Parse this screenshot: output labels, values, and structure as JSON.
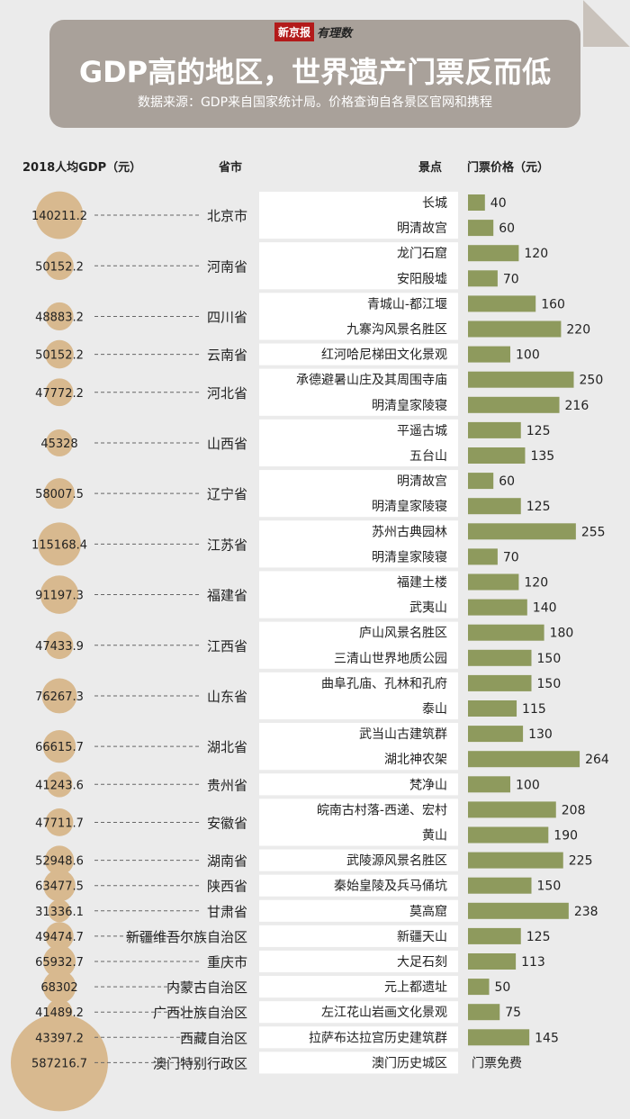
{
  "header": {
    "logo_red": "新京报",
    "logo_sub": "有理数",
    "title": "GDP高的地区，世界遗产门票反而低",
    "source": "数据来源：GDP来自国家统计局。价格查询自各景区官网和携程"
  },
  "columns": {
    "gdp": "2018人均GDP（元）",
    "province": "省市",
    "site": "景点",
    "price": "门票价格（元）"
  },
  "colors": {
    "circle": "#d8b98f",
    "bar": "#8e9a5d",
    "site_box": "#ffffff",
    "banner": "#a9a19a"
  },
  "chart_data": {
    "type": "table",
    "provinces": [
      {
        "name": "北京市",
        "gdp": "140211.2",
        "sites": [
          {
            "name": "长城",
            "price": 40
          },
          {
            "name": "明清故宫",
            "price": 60
          }
        ]
      },
      {
        "name": "河南省",
        "gdp": "50152.2",
        "sites": [
          {
            "name": "龙门石窟",
            "price": 120
          },
          {
            "name": "安阳殷墟",
            "price": 70
          }
        ]
      },
      {
        "name": "四川省",
        "gdp": "48883.2",
        "sites": [
          {
            "name": "青城山-都江堰",
            "price": 160
          },
          {
            "name": "九寨沟风景名胜区",
            "price": 220
          }
        ]
      },
      {
        "name": "云南省",
        "gdp": "50152.2",
        "sites": [
          {
            "name": "红河哈尼梯田文化景观",
            "price": 100
          }
        ]
      },
      {
        "name": "河北省",
        "gdp": "47772.2",
        "sites": [
          {
            "name": "承德避暑山庄及其周围寺庙",
            "price": 250
          },
          {
            "name": "明清皇家陵寝",
            "price": 216
          }
        ]
      },
      {
        "name": "山西省",
        "gdp": "45328",
        "sites": [
          {
            "name": "平遥古城",
            "price": 125
          },
          {
            "name": "五台山",
            "price": 135
          }
        ]
      },
      {
        "name": "辽宁省",
        "gdp": "58007.5",
        "sites": [
          {
            "name": "明清故宫",
            "price": 60
          },
          {
            "name": "明清皇家陵寝",
            "price": 125
          }
        ]
      },
      {
        "name": "江苏省",
        "gdp": "115168.4",
        "sites": [
          {
            "name": "苏州古典园林",
            "price": 255
          },
          {
            "name": "明清皇家陵寝",
            "price": 70
          }
        ]
      },
      {
        "name": "福建省",
        "gdp": "91197.3",
        "sites": [
          {
            "name": "福建土楼",
            "price": 120
          },
          {
            "name": "武夷山",
            "price": 140
          }
        ]
      },
      {
        "name": "江西省",
        "gdp": "47433.9",
        "sites": [
          {
            "name": "庐山风景名胜区",
            "price": 180
          },
          {
            "name": "三清山世界地质公园",
            "price": 150
          }
        ]
      },
      {
        "name": "山东省",
        "gdp": "76267.3",
        "sites": [
          {
            "name": "曲阜孔庙、孔林和孔府",
            "price": 150
          },
          {
            "name": "泰山",
            "price": 115
          }
        ]
      },
      {
        "name": "湖北省",
        "gdp": "66615.7",
        "sites": [
          {
            "name": "武当山古建筑群",
            "price": 130
          },
          {
            "name": "湖北神农架",
            "price": 264
          }
        ]
      },
      {
        "name": "贵州省",
        "gdp": "41243.6",
        "sites": [
          {
            "name": "梵净山",
            "price": 100
          }
        ]
      },
      {
        "name": "安徽省",
        "gdp": "47711.7",
        "sites": [
          {
            "name": "皖南古村落-西递、宏村",
            "price": 208
          },
          {
            "name": "黄山",
            "price": 190
          }
        ]
      },
      {
        "name": "湖南省",
        "gdp": "52948.6",
        "sites": [
          {
            "name": "武陵源风景名胜区",
            "price": 225
          }
        ]
      },
      {
        "name": "陕西省",
        "gdp": "63477.5",
        "sites": [
          {
            "name": "秦始皇陵及兵马俑坑",
            "price": 150
          }
        ]
      },
      {
        "name": "甘肃省",
        "gdp": "31336.1",
        "sites": [
          {
            "name": "莫高窟",
            "price": 238
          }
        ]
      },
      {
        "name": "新疆维吾尔族自治区",
        "gdp": "49474.7",
        "sites": [
          {
            "name": "新疆天山",
            "price": 125
          }
        ]
      },
      {
        "name": "重庆市",
        "gdp": "65932.7",
        "sites": [
          {
            "name": "大足石刻",
            "price": 113
          }
        ]
      },
      {
        "name": "内蒙古自治区",
        "gdp": "68302",
        "sites": [
          {
            "name": "元上都遗址",
            "price": 50
          }
        ]
      },
      {
        "name": "广西壮族自治区",
        "gdp": "41489.2",
        "sites": [
          {
            "name": "左江花山岩画文化景观",
            "price": 75
          }
        ]
      },
      {
        "name": "西藏自治区",
        "gdp": "43397.2",
        "sites": [
          {
            "name": "拉萨布达拉宫历史建筑群",
            "price": 145
          }
        ]
      },
      {
        "name": "澳门特别行政区",
        "gdp": "587216.7",
        "sites": [
          {
            "name": "澳门历史城区",
            "price": null,
            "label": "门票免费"
          }
        ]
      }
    ]
  }
}
